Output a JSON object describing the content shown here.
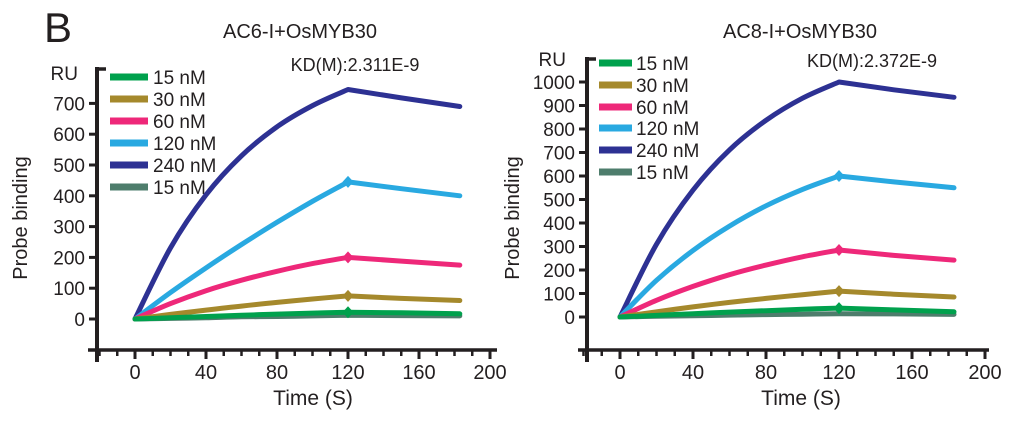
{
  "figure_label": "B",
  "colors": {
    "axis": "#231F20",
    "text": "#231F20",
    "conc_15nM": "#00A14D",
    "conc_30nM": "#A5892C",
    "conc_60nM": "#EE2879",
    "conc_120nM": "#29A9E1",
    "conc_240nM": "#2D3193",
    "conc_15nM_control": "#4E7D6C"
  },
  "chart_data": [
    {
      "type": "line",
      "title": "AC6-I+OsMYB30",
      "annotation": "KD(M):2.311E-9",
      "y_unit": "RU",
      "ylabel": "Probe binding",
      "xlabel": "Time (S)",
      "xlim": [
        -20,
        200
      ],
      "ylim": [
        0,
        760
      ],
      "x_ticks": [
        0,
        40,
        80,
        120,
        160,
        200
      ],
      "x_minor_step": 10,
      "y_ticks": [
        0,
        100,
        200,
        300,
        400,
        500,
        600,
        700
      ],
      "grid": false,
      "legend_position": "upper-left",
      "legend": [
        {
          "label": "15 nM",
          "color": "#00A14D"
        },
        {
          "label": "30 nM",
          "color": "#A5892C"
        },
        {
          "label": "60 nM",
          "color": "#EE2879"
        },
        {
          "label": "120 nM",
          "color": "#29A9E1"
        },
        {
          "label": "240 nM",
          "color": "#2D3193"
        },
        {
          "label": "15 nM",
          "color": "#4E7D6C"
        }
      ],
      "series": [
        {
          "name": "240 nM",
          "color": "#2D3193",
          "marker_at_peak": false,
          "peak_t": 120,
          "points": [
            [
              0,
              0
            ],
            [
              20,
              231
            ],
            [
              40,
              403
            ],
            [
              60,
              530
            ],
            [
              80,
              624
            ],
            [
              100,
              693
            ],
            [
              120,
              745
            ],
            [
              150,
              718
            ],
            [
              183,
              690
            ]
          ]
        },
        {
          "name": "120 nM",
          "color": "#29A9E1",
          "marker_at_peak": true,
          "peak_t": 120,
          "points": [
            [
              0,
              0
            ],
            [
              20,
              86
            ],
            [
              40,
              166
            ],
            [
              60,
              242
            ],
            [
              80,
              314
            ],
            [
              100,
              382
            ],
            [
              120,
              445
            ],
            [
              150,
              423
            ],
            [
              183,
              400
            ]
          ]
        },
        {
          "name": "60 nM",
          "color": "#EE2879",
          "marker_at_peak": true,
          "peak_t": 120,
          "points": [
            [
              0,
              0
            ],
            [
              20,
              50
            ],
            [
              40,
              92
            ],
            [
              60,
              126
            ],
            [
              80,
              155
            ],
            [
              100,
              180
            ],
            [
              120,
              200
            ],
            [
              150,
              188
            ],
            [
              183,
              175
            ]
          ]
        },
        {
          "name": "30 nM",
          "color": "#A5892C",
          "marker_at_peak": true,
          "peak_t": 120,
          "points": [
            [
              0,
              0
            ],
            [
              20,
              15
            ],
            [
              40,
              29
            ],
            [
              60,
              42
            ],
            [
              80,
              54
            ],
            [
              100,
              65
            ],
            [
              120,
              75
            ],
            [
              150,
              67
            ],
            [
              183,
              60
            ]
          ]
        },
        {
          "name": "15 nM control",
          "color": "#4E7D6C",
          "marker_at_peak": false,
          "peak_t": 120,
          "points": [
            [
              0,
              0
            ],
            [
              20,
              2
            ],
            [
              40,
              4
            ],
            [
              60,
              7
            ],
            [
              80,
              8
            ],
            [
              100,
              10
            ],
            [
              120,
              12
            ],
            [
              150,
              11
            ],
            [
              183,
              10
            ]
          ]
        },
        {
          "name": "15 nM",
          "color": "#00A14D",
          "marker_at_peak": true,
          "peak_t": 120,
          "points": [
            [
              0,
              0
            ],
            [
              20,
              4
            ],
            [
              40,
              8
            ],
            [
              60,
              12
            ],
            [
              80,
              16
            ],
            [
              100,
              19
            ],
            [
              120,
              22
            ],
            [
              150,
              20
            ],
            [
              183,
              17
            ]
          ]
        }
      ]
    },
    {
      "type": "line",
      "title": "AC8-I+OsMYB30",
      "annotation": "KD(M):2.372E-9",
      "y_unit": "RU",
      "ylabel": "Probe binding",
      "xlabel": "Time (S)",
      "xlim": [
        -20,
        200
      ],
      "ylim": [
        0,
        1090
      ],
      "x_ticks": [
        0,
        40,
        80,
        120,
        160,
        200
      ],
      "x_minor_step": 10,
      "y_ticks": [
        0,
        100,
        200,
        300,
        400,
        500,
        600,
        700,
        800,
        900,
        1000
      ],
      "grid": false,
      "legend_position": "upper-left",
      "legend": [
        {
          "label": "15 nM",
          "color": "#00A14D"
        },
        {
          "label": "30 nM",
          "color": "#A5892C"
        },
        {
          "label": "60 nM",
          "color": "#EE2879"
        },
        {
          "label": "120 nM",
          "color": "#29A9E1"
        },
        {
          "label": "240 nM",
          "color": "#2D3193"
        },
        {
          "label": "15 nM",
          "color": "#4E7D6C"
        }
      ],
      "series": [
        {
          "name": "240 nM",
          "color": "#2D3193",
          "marker_at_peak": false,
          "peak_t": 120,
          "points": [
            [
              0,
              0
            ],
            [
              20,
              310
            ],
            [
              40,
              540
            ],
            [
              60,
              711
            ],
            [
              80,
              837
            ],
            [
              100,
              931
            ],
            [
              120,
              1000
            ],
            [
              150,
              967
            ],
            [
              183,
              935
            ]
          ]
        },
        {
          "name": "120 nM",
          "color": "#29A9E1",
          "marker_at_peak": true,
          "peak_t": 120,
          "points": [
            [
              0,
              0
            ],
            [
              20,
              156
            ],
            [
              40,
              283
            ],
            [
              60,
              387
            ],
            [
              80,
              473
            ],
            [
              100,
              543
            ],
            [
              120,
              600
            ],
            [
              150,
              575
            ],
            [
              183,
              550
            ]
          ]
        },
        {
          "name": "60 nM",
          "color": "#EE2879",
          "marker_at_peak": true,
          "peak_t": 120,
          "points": [
            [
              0,
              0
            ],
            [
              20,
              71
            ],
            [
              40,
              130
            ],
            [
              60,
              180
            ],
            [
              80,
              221
            ],
            [
              100,
              256
            ],
            [
              120,
              285
            ],
            [
              150,
              262
            ],
            [
              183,
              242
            ]
          ]
        },
        {
          "name": "30 nM",
          "color": "#A5892C",
          "marker_at_peak": true,
          "peak_t": 120,
          "points": [
            [
              0,
              0
            ],
            [
              20,
              22
            ],
            [
              40,
              43
            ],
            [
              60,
              62
            ],
            [
              80,
              79
            ],
            [
              100,
              95
            ],
            [
              120,
              110
            ],
            [
              150,
              97
            ],
            [
              183,
              85
            ]
          ]
        },
        {
          "name": "15 nM control",
          "color": "#4E7D6C",
          "marker_at_peak": false,
          "peak_t": 120,
          "points": [
            [
              0,
              0
            ],
            [
              20,
              3
            ],
            [
              40,
              5
            ],
            [
              60,
              8
            ],
            [
              80,
              10
            ],
            [
              100,
              12
            ],
            [
              120,
              14
            ],
            [
              150,
              13
            ],
            [
              183,
              11
            ]
          ]
        },
        {
          "name": "15 nM",
          "color": "#00A14D",
          "marker_at_peak": true,
          "peak_t": 120,
          "points": [
            [
              0,
              0
            ],
            [
              20,
              7
            ],
            [
              40,
              14
            ],
            [
              60,
              21
            ],
            [
              80,
              27
            ],
            [
              100,
              33
            ],
            [
              120,
              38
            ],
            [
              150,
              30
            ],
            [
              183,
              22
            ]
          ]
        }
      ]
    }
  ]
}
